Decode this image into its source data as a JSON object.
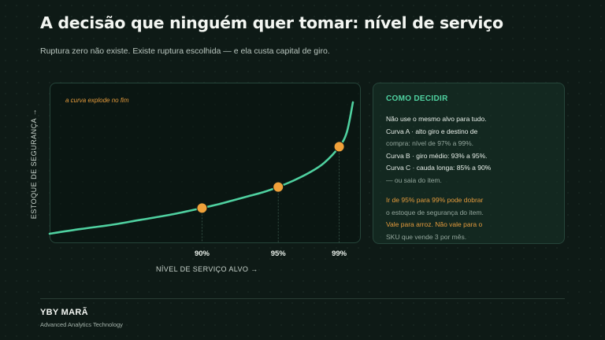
{
  "header": {
    "title": "A decisão que ninguém quer tomar: nível de serviço",
    "subtitle": "Ruptura zero não existe. Existe ruptura escolhida — e ela custa capital de giro."
  },
  "chart_data": {
    "type": "line",
    "xlabel": "NÍVEL DE SERVIÇO ALVO  →",
    "ylabel": "ESTOQUE DE SEGURANÇA  →",
    "annotation": "a curva explode no fim",
    "xlim": [
      80,
      99.9
    ],
    "x_ticks": [
      "90%",
      "95%",
      "99%"
    ],
    "x": [
      80,
      82,
      84,
      86,
      88,
      90,
      91,
      92,
      93,
      94,
      95,
      96,
      97,
      98,
      99,
      99.5,
      99.9
    ],
    "y": [
      0.84,
      0.92,
      0.99,
      1.08,
      1.17,
      1.28,
      1.34,
      1.41,
      1.48,
      1.55,
      1.64,
      1.75,
      1.88,
      2.05,
      2.33,
      2.58,
      3.09
    ],
    "ylim": [
      0.84,
      3.09
    ],
    "highlight_points": [
      {
        "x": 90,
        "y": 1.28
      },
      {
        "x": 95,
        "y": 1.64
      },
      {
        "x": 99,
        "y": 2.33
      }
    ],
    "colors": {
      "line": "#4fd1a0",
      "point": "#f0a13a",
      "annotation": "#e39a3c"
    }
  },
  "card": {
    "title": "COMO DECIDIR",
    "lines": [
      {
        "text": "Não use o mesmo alvo para tudo.",
        "style": "white"
      },
      {
        "text": "Curva A · alto giro e destino de",
        "style": "white"
      },
      {
        "text": "compra: nível de 97% a 99%.",
        "style": "muted"
      },
      {
        "text": "Curva B · giro médio: 93% a 95%.",
        "style": "white"
      },
      {
        "text": "Curva C · cauda longa: 85% a 90%",
        "style": "white"
      },
      {
        "text": "— ou saia do item.",
        "style": "muted"
      },
      {
        "text": "",
        "style": "gap"
      },
      {
        "text": "Ir de 95% para 99% pode dobrar",
        "style": "orange"
      },
      {
        "text": "o estoque de segurança do item.",
        "style": "muted"
      },
      {
        "text": "Vale para arroz. Não vale para o",
        "style": "orange"
      },
      {
        "text": "SKU que vende 3 por mês.",
        "style": "muted"
      }
    ]
  },
  "footer": {
    "brand": "YBY MARÃ",
    "tagline": "Advanced Analytics Technology"
  }
}
